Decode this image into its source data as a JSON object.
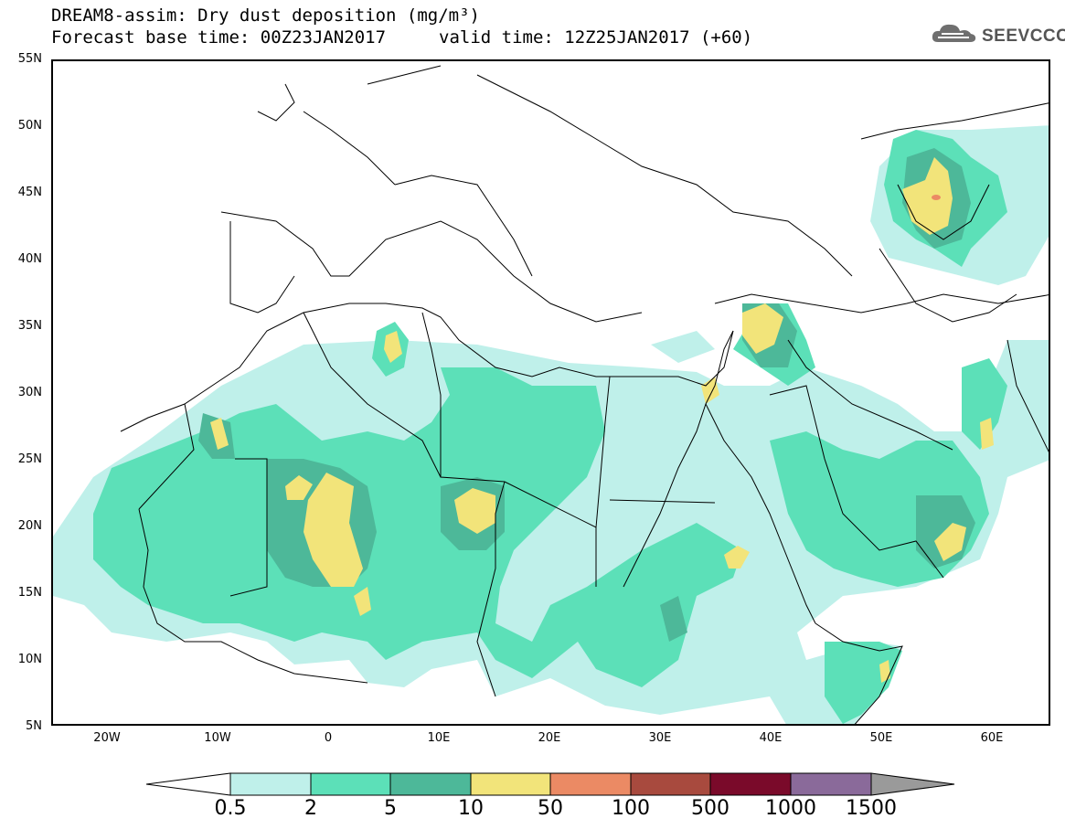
{
  "header": {
    "title": "DREAM8-assim: Dry dust deposition (mg/m³)",
    "base_time": "Forecast base time: 00Z23JAN2017",
    "valid_time": "valid time: 12Z25JAN2017 (+60)",
    "logo_text": "SEEVCCC",
    "logo_icon": "cloud-icon"
  },
  "axes": {
    "lat_labels": [
      "55N",
      "50N",
      "45N",
      "40N",
      "35N",
      "30N",
      "25N",
      "20N",
      "15N",
      "10N",
      "5N"
    ],
    "lon_labels": [
      "20W",
      "10W",
      "0",
      "10E",
      "20E",
      "30E",
      "40E",
      "50E",
      "60E"
    ],
    "lon_range": [
      -25,
      65
    ],
    "lat_range": [
      5,
      55
    ]
  },
  "legend": {
    "labels": [
      "0.5",
      "2",
      "5",
      "10",
      "50",
      "100",
      "500",
      "1000",
      "1500"
    ],
    "colors": [
      "#ffffff",
      "#bff0ea",
      "#5ce0b8",
      "#4db899",
      "#f2e47a",
      "#eb8a64",
      "#a84a3e",
      "#7a0a2a",
      "#8a6a9a",
      "#9a9a9a"
    ],
    "units": "mg/m³"
  }
}
